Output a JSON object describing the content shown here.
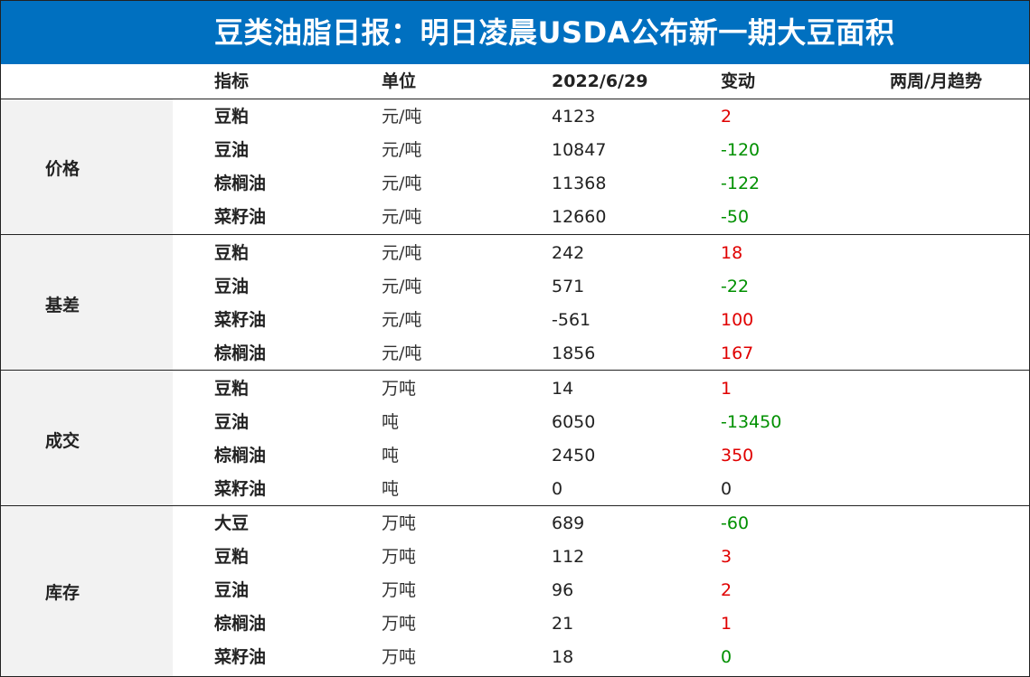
{
  "title": "豆类油脂日报：明日凌晨USDA公布新一期大豆面积",
  "columns": {
    "indicator": "指标",
    "unit": "单位",
    "date": "2022/6/29",
    "change": "变动",
    "trend": "两周/月趋势"
  },
  "colors": {
    "header_bg": "#0070c0",
    "up": "#e00000",
    "down": "#009000",
    "category_bg": "#f2f2f2"
  },
  "sections": [
    {
      "category": "价格",
      "rows": [
        {
          "name": "豆粕",
          "unit": "元/吨",
          "value": "4123",
          "change": "2",
          "dir": "up"
        },
        {
          "name": "豆油",
          "unit": "元/吨",
          "value": "10847",
          "change": "-120",
          "dir": "down"
        },
        {
          "name": "棕榈油",
          "unit": "元/吨",
          "value": "11368",
          "change": "-122",
          "dir": "down"
        },
        {
          "name": "菜籽油",
          "unit": "元/吨",
          "value": "12660",
          "change": "-50",
          "dir": "down"
        }
      ]
    },
    {
      "category": "基差",
      "rows": [
        {
          "name": "豆粕",
          "unit": "元/吨",
          "value": "242",
          "change": "18",
          "dir": "up"
        },
        {
          "name": "豆油",
          "unit": "元/吨",
          "value": "571",
          "change": "-22",
          "dir": "down"
        },
        {
          "name": "菜籽油",
          "unit": "元/吨",
          "value": "-561",
          "change": "100",
          "dir": "up"
        },
        {
          "name": "棕榈油",
          "unit": "元/吨",
          "value": "1856",
          "change": "167",
          "dir": "up"
        }
      ]
    },
    {
      "category": "成交",
      "rows": [
        {
          "name": "豆粕",
          "unit": "万吨",
          "value": "14",
          "change": "1",
          "dir": "up"
        },
        {
          "name": "豆油",
          "unit": "吨",
          "value": "6050",
          "change": "-13450",
          "dir": "down"
        },
        {
          "name": "棕榈油",
          "unit": "吨",
          "value": "2450",
          "change": "350",
          "dir": "up"
        },
        {
          "name": "菜籽油",
          "unit": "吨",
          "value": "0",
          "change": "0",
          "dir": "flat"
        }
      ]
    },
    {
      "category": "库存",
      "rows": [
        {
          "name": "大豆",
          "unit": "万吨",
          "value": "689",
          "change": "-60",
          "dir": "down"
        },
        {
          "name": "豆粕",
          "unit": "万吨",
          "value": "112",
          "change": "3",
          "dir": "up"
        },
        {
          "name": "豆油",
          "unit": "万吨",
          "value": "96",
          "change": "2",
          "dir": "up"
        },
        {
          "name": "棕榈油",
          "unit": "万吨",
          "value": "21",
          "change": "1",
          "dir": "up"
        },
        {
          "name": "菜籽油",
          "unit": "万吨",
          "value": "18",
          "change": "0",
          "dir": "down"
        }
      ]
    }
  ]
}
